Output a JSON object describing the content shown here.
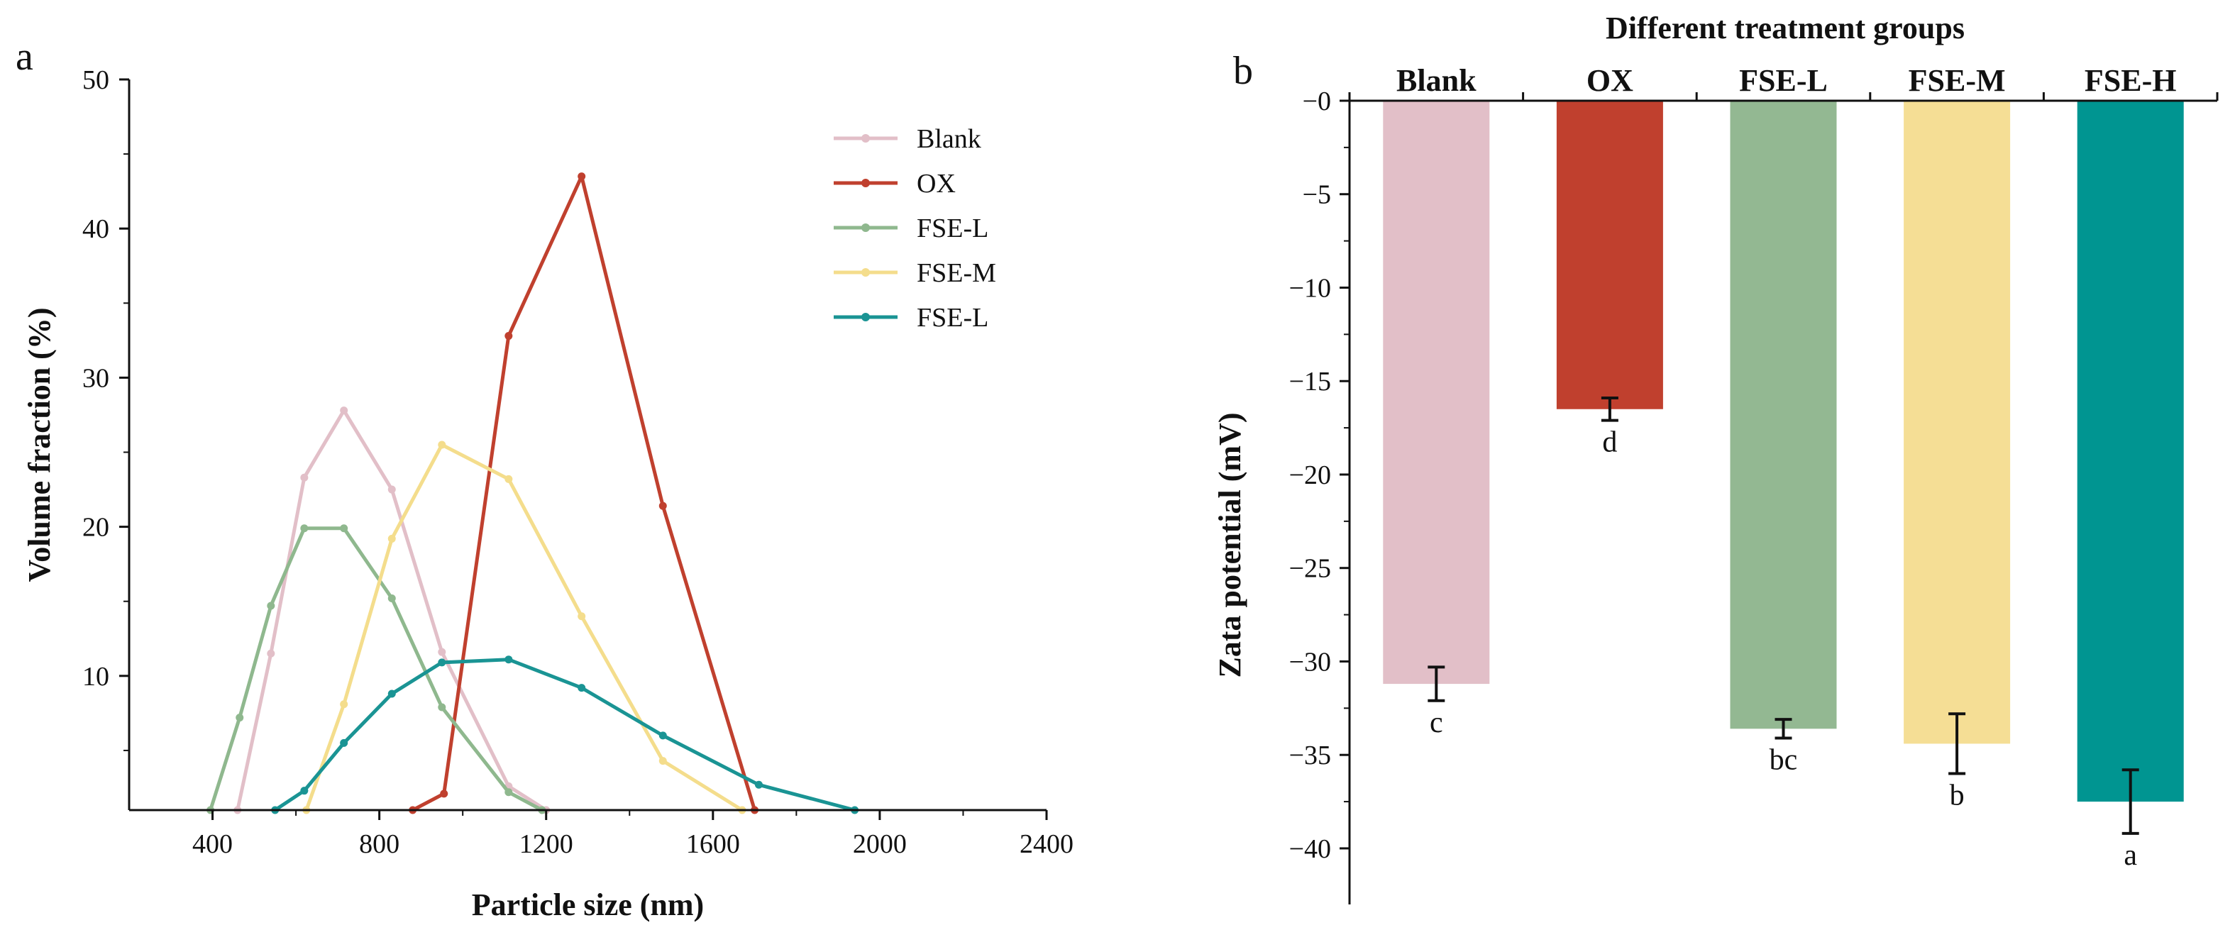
{
  "figure": {
    "panel_a_letter": "a",
    "panel_b_letter": "b"
  },
  "chart_data": [
    {
      "type": "line",
      "xlabel": "Particle size (nm)",
      "ylabel": "Volume fraction (%)",
      "xlim": [
        200,
        2400
      ],
      "ylim": [
        1,
        50
      ],
      "xticks": [
        400,
        800,
        1200,
        1600,
        2000,
        2400
      ],
      "yticks": [
        10,
        20,
        30,
        40,
        50
      ],
      "legend_position": "top-right",
      "grid": false,
      "series": [
        {
          "name": "Blank",
          "color": "#e2bfc8",
          "x": [
            460,
            540,
            620,
            715,
            830,
            950,
            1110,
            1200
          ],
          "y": [
            1,
            11.5,
            23.3,
            27.8,
            22.5,
            11.6,
            2.6,
            1
          ]
        },
        {
          "name": "OX",
          "color": "#c0402e",
          "x": [
            880,
            955,
            1110,
            1285,
            1480,
            1700
          ],
          "y": [
            1,
            2.1,
            32.8,
            43.5,
            21.4,
            1
          ]
        },
        {
          "name": "FSE-L",
          "color": "#8fb88e",
          "x": [
            395,
            465,
            540,
            620,
            715,
            830,
            950,
            1110,
            1190
          ],
          "y": [
            1,
            7.2,
            14.7,
            19.9,
            19.9,
            15.2,
            7.9,
            2.2,
            1
          ]
        },
        {
          "name": "FSE-M",
          "color": "#f4dd8c",
          "x": [
            625,
            715,
            830,
            950,
            1110,
            1285,
            1480,
            1670
          ],
          "y": [
            1,
            8.1,
            19.2,
            25.5,
            23.2,
            14.0,
            4.3,
            1
          ]
        },
        {
          "name": "FSE-L",
          "color": "#1a9494",
          "x": [
            550,
            620,
            715,
            830,
            950,
            1110,
            1285,
            1480,
            1710,
            1940
          ],
          "y": [
            1,
            2.3,
            5.5,
            8.8,
            10.9,
            11.1,
            9.2,
            6.0,
            2.7,
            1
          ]
        }
      ]
    },
    {
      "type": "bar",
      "title": "Different treatment groups",
      "ylabel": "Zata potential (mV)",
      "ylim": [
        -43,
        0
      ],
      "yticks": [
        0,
        -5,
        -10,
        -15,
        -20,
        -25,
        -30,
        -35,
        -40
      ],
      "ytick_labels": [
        "−0",
        "−5",
        "−10",
        "−15",
        "−20",
        "−25",
        "−30",
        "−35",
        "−40"
      ],
      "categories": [
        "Blank",
        "OX",
        "FSE-L",
        "FSE-M",
        "FSE-H"
      ],
      "values": [
        -31.2,
        -16.5,
        -33.6,
        -34.4,
        -37.5
      ],
      "errors": [
        0.9,
        0.6,
        0.5,
        1.6,
        1.7
      ],
      "colors": [
        "#e2bfc8",
        "#c0402e",
        "#93b892",
        "#f5de95",
        "#009591"
      ],
      "significance": [
        "c",
        "d",
        "bc",
        "b",
        "a"
      ],
      "grid": false
    }
  ]
}
